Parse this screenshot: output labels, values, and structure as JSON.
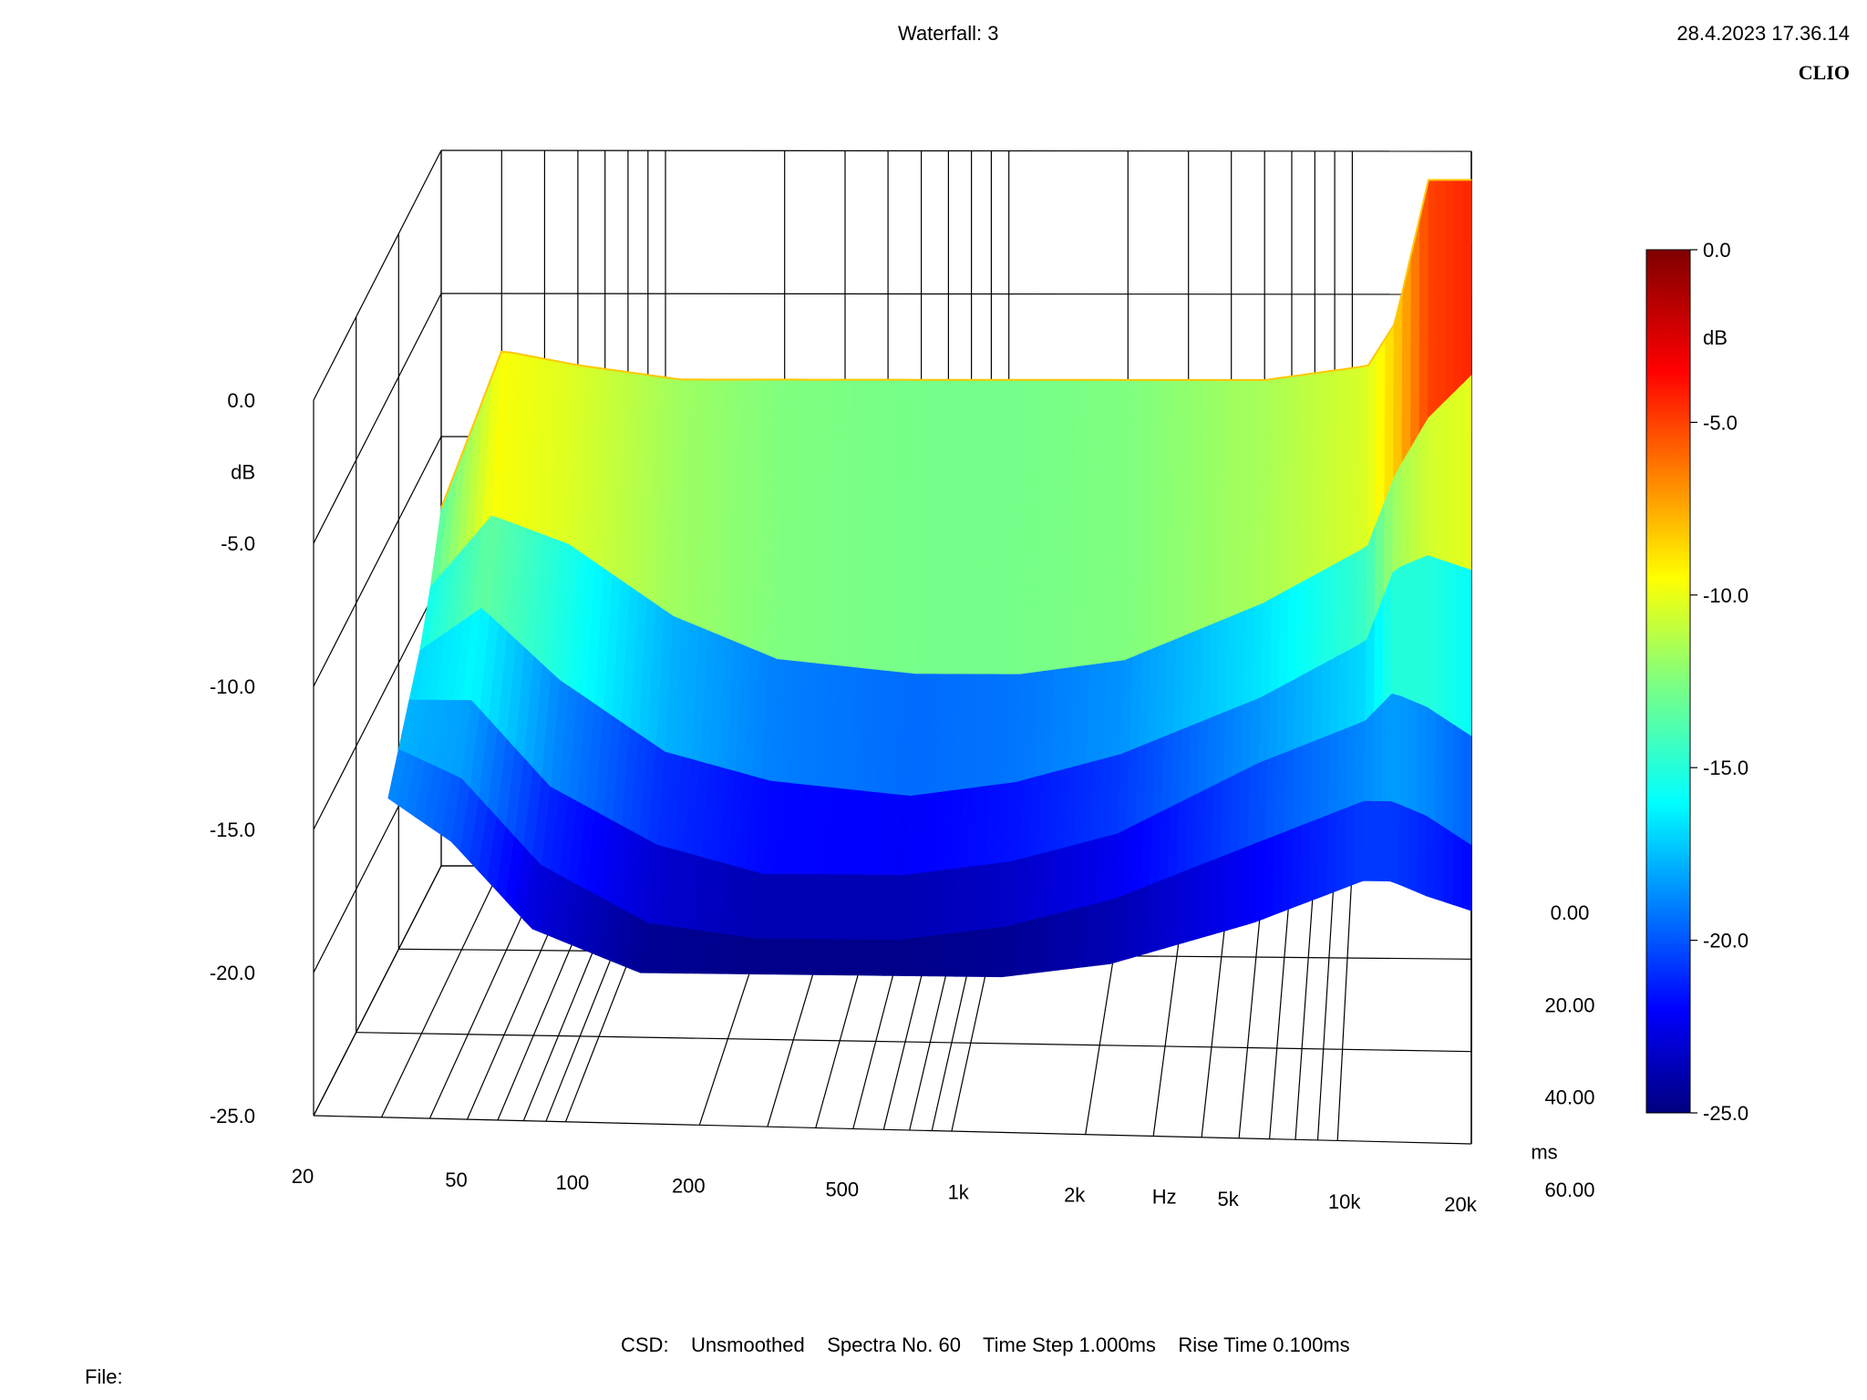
{
  "header": {
    "title": "Waterfall: 3",
    "datetime": "28.4.2023 17.36.14",
    "brand": "CLIO"
  },
  "footer": {
    "settings": "CSD:    Unsmoothed    Spectra No. 60    Time Step 1.000ms    Rise Time 0.100ms",
    "file_label": "File:"
  },
  "chart_data": {
    "type": "waterfall",
    "title": "Waterfall: 3",
    "x": {
      "label": "Hz",
      "scale": "log",
      "range": [
        20,
        20000
      ],
      "ticks": [
        20,
        50,
        100,
        200,
        500,
        1000,
        2000,
        5000,
        10000,
        20000
      ],
      "tick_labels": [
        "20",
        "50",
        "100",
        "200",
        "500",
        "1k",
        "2k",
        "5k",
        "10k",
        "20k"
      ]
    },
    "z": {
      "label": "ms",
      "range": [
        0,
        60
      ],
      "ticks": [
        0,
        20,
        40,
        60
      ],
      "tick_labels": [
        "0.00",
        "20.00",
        "40.00",
        "60.00"
      ]
    },
    "y": {
      "label": "dB",
      "range": [
        -25,
        0
      ],
      "ticks": [
        0,
        -5,
        -10,
        -15,
        -20,
        -25
      ],
      "tick_labels": [
        "0.0",
        "-5.0",
        "-10.0",
        "-15.0",
        "-20.0",
        "-25.0"
      ]
    },
    "colorbar": {
      "label": "dB",
      "range": [
        -25,
        0
      ],
      "ticks": [
        0,
        -5,
        -10,
        -15,
        -20,
        -25
      ],
      "tick_labels": [
        "0.0",
        "-5.0",
        "-10.0",
        "-15.0",
        "-20.0",
        "-25.0"
      ],
      "colormap": "jet"
    },
    "spectra_count": 60,
    "time_step_ms": 1.0,
    "rise_time_ms": 0.1,
    "slices": [
      {
        "t_ms": 0,
        "freq": [
          20,
          30,
          50,
          100,
          200,
          500,
          1000,
          2000,
          5000,
          10000,
          12000,
          15000,
          20000
        ],
        "db": [
          -12.5,
          -7.0,
          -7.5,
          -8.0,
          -8.0,
          -8.0,
          -8.0,
          -8.0,
          -8.0,
          -7.5,
          -6.0,
          -1.0,
          -1.0
        ]
      },
      {
        "t_ms": 5,
        "freq": [
          20,
          30,
          50,
          100,
          200,
          500,
          1000,
          2000,
          5000,
          10000,
          12000,
          15000,
          20000
        ],
        "db": [
          -14.5,
          -12.0,
          -13.0,
          -15.5,
          -17.0,
          -17.5,
          -17.5,
          -17.0,
          -15.0,
          -13.0,
          -10.5,
          -8.5,
          -7.0
        ]
      },
      {
        "t_ms": 10,
        "freq": [
          20,
          30,
          50,
          100,
          200,
          500,
          1000,
          2000,
          5000,
          10000,
          12000,
          15000,
          20000
        ],
        "db": [
          -16.0,
          -14.5,
          -17.0,
          -19.5,
          -20.5,
          -21.0,
          -20.5,
          -19.5,
          -17.5,
          -15.5,
          -13.0,
          -12.5,
          -13.0
        ]
      },
      {
        "t_ms": 15,
        "freq": [
          20,
          30,
          50,
          100,
          200,
          500,
          1000,
          2000,
          5000,
          10000,
          12000,
          15000,
          20000
        ],
        "db": [
          -17.0,
          -17.0,
          -20.0,
          -22.0,
          -23.0,
          -23.0,
          -22.5,
          -21.5,
          -19.0,
          -17.5,
          -16.5,
          -17.0,
          -18.0
        ]
      },
      {
        "t_ms": 20,
        "freq": [
          20,
          30,
          50,
          100,
          200,
          500,
          1000,
          2000,
          5000,
          10000,
          12000,
          15000,
          20000
        ],
        "db": [
          -18.0,
          -19.0,
          -22.0,
          -24.0,
          -24.5,
          -24.5,
          -24.0,
          -23.0,
          -21.0,
          -19.5,
          -19.5,
          -20.0,
          -21.0
        ]
      },
      {
        "t_ms": 25,
        "freq": [
          20,
          30,
          50,
          100,
          200,
          500,
          1000,
          2000,
          5000,
          10000,
          12000,
          15000,
          20000
        ],
        "db": [
          -19.0,
          -20.5,
          -23.5,
          -25.0,
          -25.0,
          -25.0,
          -25.0,
          -24.5,
          -23.0,
          -21.5,
          -21.5,
          -22.0,
          -22.5
        ]
      }
    ]
  }
}
